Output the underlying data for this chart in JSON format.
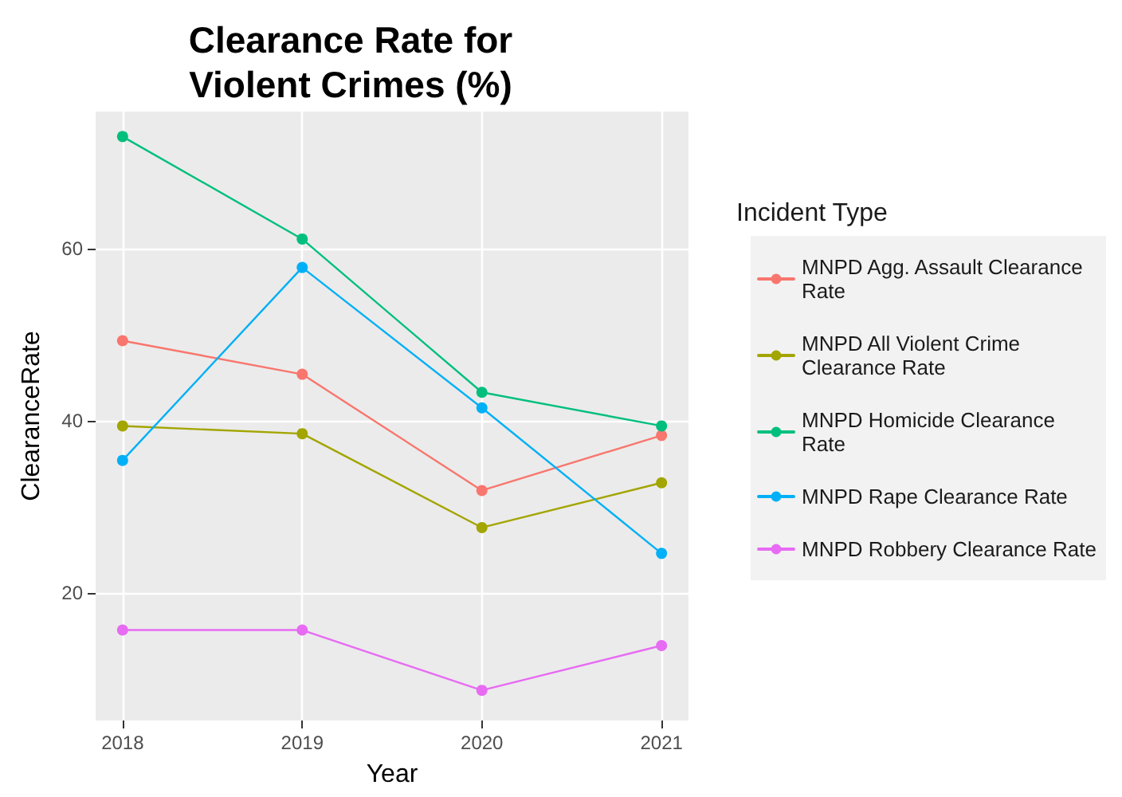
{
  "chart_data": {
    "type": "line",
    "title": "Clearance Rate for\nViolent Crimes (%)",
    "xlabel": "Year",
    "ylabel": "ClearanceRate",
    "legend_title": "Incident Type",
    "x": [
      2018,
      2019,
      2020,
      2021
    ],
    "series": [
      {
        "name": "MNPD Agg. Assault Clearance Rate",
        "color": "#f8766d",
        "values": [
          49.3,
          45.4,
          31.9,
          38.3
        ]
      },
      {
        "name": "MNPD All Violent Crime Clearance Rate",
        "color": "#a3a500",
        "values": [
          39.4,
          38.5,
          27.6,
          32.8
        ]
      },
      {
        "name": "MNPD Homicide Clearance Rate",
        "color": "#00bf7d",
        "values": [
          73.0,
          61.1,
          43.3,
          39.4
        ]
      },
      {
        "name": "MNPD Rape Clearance Rate",
        "color": "#00b0f6",
        "values": [
          35.4,
          57.8,
          41.5,
          24.6
        ]
      },
      {
        "name": "MNPD Robbery Clearance Rate",
        "color": "#e76bf3",
        "values": [
          15.7,
          15.7,
          8.7,
          13.9
        ]
      }
    ],
    "xlim": [
      2017.85,
      2021.15
    ],
    "xticks": [
      2018,
      2019,
      2020,
      2021
    ],
    "ylim": [
      5.2,
      75.9
    ],
    "yticks": [
      20,
      40,
      60
    ],
    "grid": true,
    "legend": "right",
    "marker": "circle",
    "line_style": "solid"
  }
}
